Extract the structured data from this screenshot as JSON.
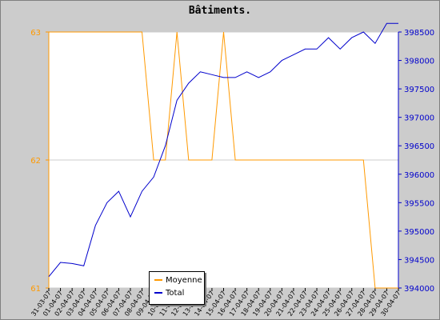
{
  "chart_data": {
    "type": "line",
    "title": "Bâtiments.",
    "categories": [
      "31-03-07",
      "01-04-07",
      "02-04-07",
      "03-04-07",
      "04-04-07",
      "05-04-07",
      "06-04-07",
      "07-04-07",
      "08-04-07",
      "09-04-07",
      "10-04-07",
      "11-04-07",
      "12-04-07",
      "13-04-07",
      "14-04-07",
      "15-04-07",
      "16-04-07",
      "17-04-07",
      "18-04-07",
      "19-04-07",
      "20-04-07",
      "21-04-07",
      "22-04-07",
      "23-04-07",
      "24-04-07",
      "25-04-07",
      "26-04-07",
      "27-04-07",
      "28-04-07",
      "29-04-07",
      "30-04-07"
    ],
    "series": [
      {
        "name": "Moyenne",
        "color": "#ff9900",
        "axis": "left",
        "values": [
          63,
          63,
          63,
          63,
          63,
          63,
          63,
          63,
          63,
          62,
          62,
          63,
          62,
          62,
          62,
          63,
          62,
          62,
          62,
          62,
          62,
          62,
          62,
          62,
          62,
          62,
          62,
          62,
          61,
          61,
          61
        ]
      },
      {
        "name": "Total",
        "color": "#0000cc",
        "axis": "right",
        "values": [
          394200,
          394450,
          394430,
          394390,
          395100,
          395500,
          395700,
          395250,
          395700,
          395950,
          396500,
          397300,
          397600,
          397800,
          397750,
          397700,
          397700,
          397800,
          397700,
          397800,
          398000,
          398100,
          398200,
          398200,
          398400,
          398200,
          398400,
          398500,
          398300,
          398650,
          398650
        ]
      }
    ],
    "y_left": {
      "min": 61,
      "max": 63,
      "ticks": [
        "61",
        "62",
        "63"
      ]
    },
    "y_right": {
      "min": 394000,
      "max": 398500,
      "ticks": [
        "394000",
        "394500",
        "395000",
        "395500",
        "396000",
        "396500",
        "397000",
        "397500",
        "398000",
        "398500"
      ]
    },
    "grid": "horizontal",
    "legend_position": "bottom-center",
    "xlabel": "",
    "ylabel": ""
  }
}
